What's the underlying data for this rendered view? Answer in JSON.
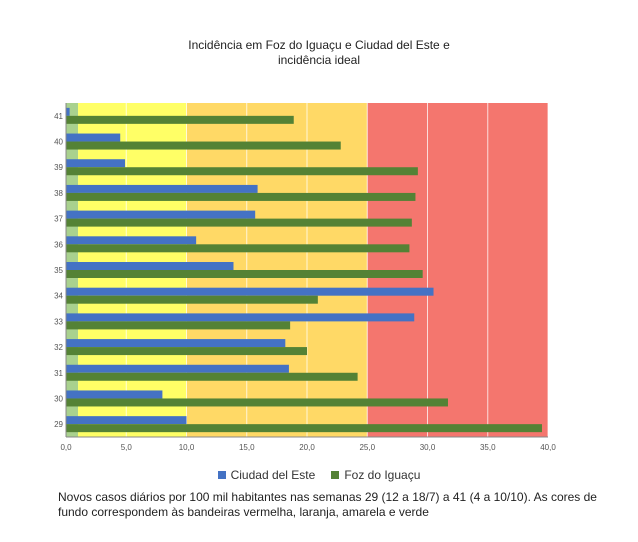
{
  "chart_data": {
    "type": "bar",
    "orientation": "horizontal",
    "title_line1": "Incidência em Foz do Iguaçu e Ciudad del Este e",
    "title_line2": "incidência ideal",
    "categories": [
      "29",
      "30",
      "31",
      "32",
      "33",
      "34",
      "35",
      "36",
      "37",
      "38",
      "39",
      "40",
      "41"
    ],
    "series": [
      {
        "name": "Ciudad del Este",
        "color": "#4472c4",
        "values": [
          10.0,
          8.0,
          18.5,
          18.2,
          28.9,
          30.5,
          13.9,
          10.8,
          15.7,
          15.9,
          4.9,
          4.5,
          0.3
        ]
      },
      {
        "name": "Foz do Iguaçu",
        "color": "#548235",
        "values": [
          39.5,
          31.7,
          24.2,
          20.0,
          18.6,
          20.9,
          29.6,
          28.5,
          28.7,
          29.0,
          29.2,
          22.8,
          18.9
        ]
      }
    ],
    "xlim": [
      0,
      40
    ],
    "x_ticks": [
      "0,0",
      "5,0",
      "10,0",
      "15,0",
      "20,0",
      "25,0",
      "30,0",
      "35,0",
      "40,0"
    ],
    "background_bands": [
      {
        "from": 0,
        "to": 1,
        "color": "#a9d18e"
      },
      {
        "from": 1,
        "to": 10,
        "color": "#ffff66"
      },
      {
        "from": 10,
        "to": 25,
        "color": "#ffd966"
      },
      {
        "from": 25,
        "to": 40,
        "color": "#f4766e"
      }
    ],
    "grid": true,
    "legend_position": "bottom"
  },
  "caption": "Novos casos diários por 100 mil habitantes nas semanas 29 (12 a 18/7) a 41 (4 a 10/10). As cores de fundo correspondem às bandeiras vermelha, laranja, amarela e verde"
}
